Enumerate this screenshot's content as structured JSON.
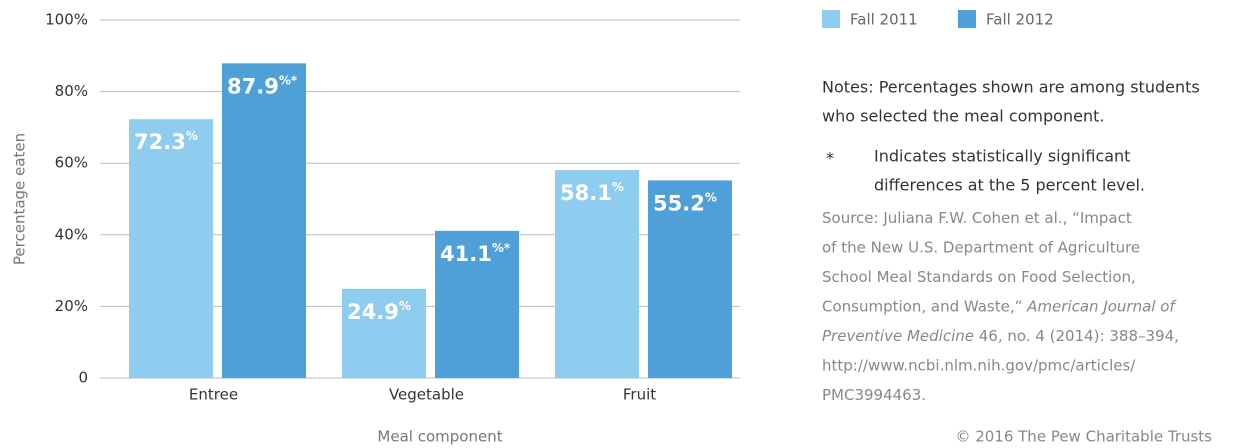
{
  "chart_data": {
    "type": "bar",
    "categories": [
      "Entree",
      "Vegetable",
      "Fruit"
    ],
    "series": [
      {
        "name": "Fall 2011",
        "color": "#8fcdf0",
        "values": [
          72.3,
          24.9,
          58.1
        ],
        "value_labels": [
          "72.3%",
          "24.9%",
          "58.1%"
        ]
      },
      {
        "name": "Fall 2012",
        "color": "#4f9fd8",
        "values": [
          87.9,
          41.1,
          55.2
        ],
        "value_labels": [
          "87.9%*",
          "41.1%*",
          "55.2%"
        ]
      }
    ],
    "ylim": [
      0,
      100
    ],
    "yticks": [
      0,
      {
        "value": 20,
        "label": "20%"
      },
      {
        "value": 40,
        "label": "40%"
      },
      {
        "value": 60,
        "label": "60%"
      },
      {
        "value": 80,
        "label": "80%"
      },
      {
        "value": 100,
        "label": "100%"
      }
    ],
    "ylabel": "Percentage eaten",
    "xlabel": "Meal component",
    "grid": true,
    "legend": "top-right"
  },
  "notes": {
    "lines": [
      "Notes: Percentages shown are among students",
      "who selected the meal component."
    ],
    "footnote_symbol": "*",
    "footnote_lines": [
      "Indicates statistically significant",
      "differences at the 5 percent level."
    ]
  },
  "source": [
    [
      "Source: Juliana F.W. Cohen et al., “Impact"
    ],
    [
      "of the New U.S. Department of Agriculture"
    ],
    [
      "School Meal Standards on Food Selection,"
    ],
    [
      "Consumption, and Waste,” ",
      {
        "italic": "American Journal of"
      }
    ],
    [
      {
        "italic": "Preventive Medicine"
      },
      " 46, no. 4 (2014): 388–394,"
    ],
    [
      "http://www.ncbi.nlm.nih.gov/pmc/articles/"
    ],
    [
      "PMC3994463."
    ]
  ],
  "copyright": "© 2016 The Pew Charitable Trusts"
}
